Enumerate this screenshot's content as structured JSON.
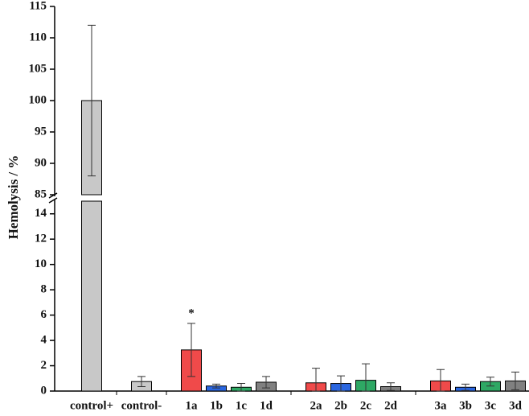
{
  "chart_data": {
    "type": "bar",
    "y_label": "Hemolysis / %",
    "categories": [
      "control+",
      "control-",
      "1a",
      "1b",
      "1c",
      "1d",
      "2a",
      "2b",
      "2c",
      "2d",
      "3a",
      "3b",
      "3c",
      "3d"
    ],
    "values": [
      100,
      0.75,
      3.25,
      0.4,
      0.3,
      0.7,
      0.65,
      0.6,
      0.85,
      0.35,
      0.8,
      0.3,
      0.75,
      0.8
    ],
    "errors": [
      12,
      0.4,
      2.1,
      0.15,
      0.3,
      0.45,
      1.15,
      0.6,
      1.3,
      0.3,
      0.9,
      0.25,
      0.35,
      0.7
    ],
    "colors": [
      "#c8c8c8",
      "#c8c8c8",
      "#f04a4a",
      "#2a66e0",
      "#2ea864",
      "#808080",
      "#f04a4a",
      "#2a66e0",
      "#2ea864",
      "#808080",
      "#f04a4a",
      "#2a66e0",
      "#2ea864",
      "#808080"
    ],
    "annotation": {
      "text": "*",
      "category": "1a"
    },
    "ylim": [
      0,
      115
    ],
    "y_break": [
      15,
      85
    ],
    "yticks": [
      0,
      2,
      4,
      6,
      8,
      10,
      12,
      14,
      85,
      90,
      95,
      100,
      105,
      110,
      115
    ]
  }
}
